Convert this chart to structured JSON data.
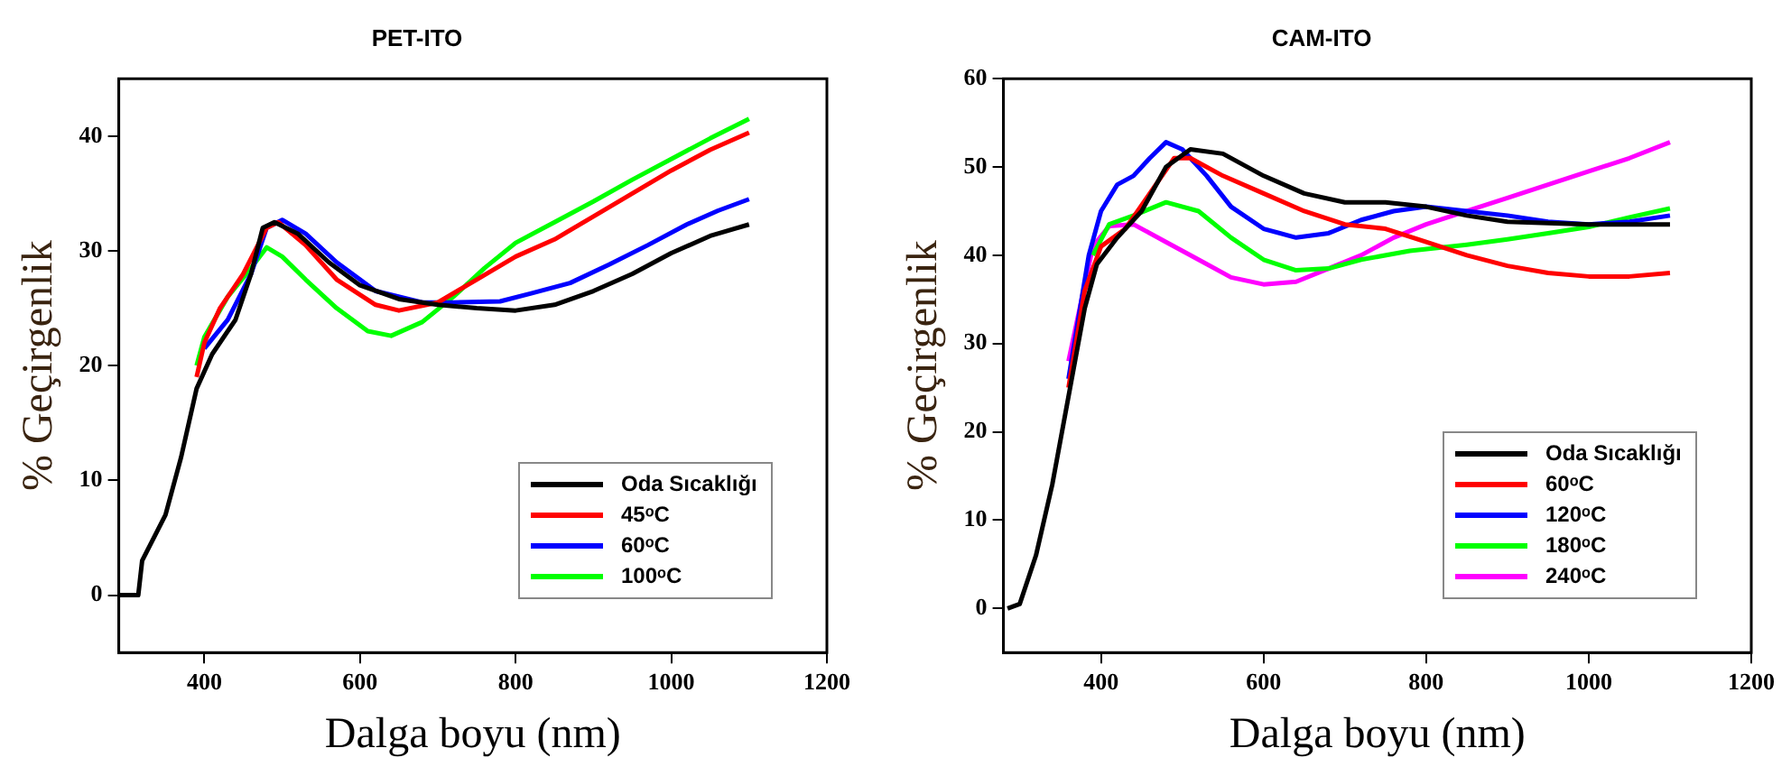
{
  "chart_data": [
    {
      "type": "line",
      "title": "PET-ITO",
      "xlabel": "Dalga boyu (nm)",
      "ylabel": "% Geçirgenlik",
      "xlim": [
        290,
        1200
      ],
      "ylim": [
        -5,
        45
      ],
      "xticks": [
        400,
        600,
        800,
        1000,
        1200
      ],
      "yticks": [
        0,
        10,
        20,
        30,
        40
      ],
      "legend": "bottom right",
      "series": [
        {
          "name": "Oda Sıcaklığı",
          "color": "#000000",
          "x": [
            290,
            315,
            320,
            350,
            370,
            390,
            410,
            440,
            460,
            475,
            490,
            520,
            560,
            600,
            650,
            700,
            750,
            800,
            850,
            900,
            950,
            1000,
            1050,
            1100
          ],
          "values": [
            0,
            0,
            3,
            7,
            12,
            18,
            21,
            24,
            28,
            32,
            32.5,
            31.5,
            29,
            27,
            25.8,
            25.3,
            25,
            24.8,
            25.3,
            26.5,
            28,
            29.8,
            31.3,
            32.3
          ]
        },
        {
          "name": "45ᵒC",
          "color": "#ff0000",
          "x": [
            390,
            400,
            420,
            450,
            480,
            495,
            530,
            570,
            620,
            650,
            700,
            750,
            800,
            850,
            900,
            950,
            1000,
            1050,
            1100
          ],
          "values": [
            19,
            22,
            25,
            28,
            32,
            32.5,
            30.5,
            27.5,
            25.3,
            24.8,
            25.5,
            27.5,
            29.5,
            31,
            33,
            35,
            37,
            38.8,
            40.3
          ]
        },
        {
          "name": "60ᵒC",
          "color": "#0000ff",
          "x": [
            400,
            430,
            460,
            480,
            500,
            530,
            570,
            620,
            680,
            720,
            780,
            820,
            870,
            920,
            970,
            1020,
            1060,
            1100
          ],
          "values": [
            21.5,
            24,
            28,
            32,
            32.7,
            31.5,
            29,
            26.5,
            25.5,
            25.5,
            25.6,
            26.3,
            27.2,
            28.8,
            30.5,
            32.3,
            33.5,
            34.5
          ]
        },
        {
          "name": "100ᵒC",
          "color": "#00ff00",
          "x": [
            390,
            400,
            430,
            460,
            480,
            500,
            530,
            570,
            610,
            640,
            680,
            720,
            760,
            800,
            850,
            900,
            950,
            1000,
            1050,
            1100
          ],
          "values": [
            20,
            22.5,
            26,
            28.5,
            30.3,
            29.5,
            27.5,
            25,
            23,
            22.6,
            23.8,
            26,
            28.5,
            30.7,
            32.5,
            34.3,
            36.2,
            38,
            39.8,
            41.5
          ]
        }
      ]
    },
    {
      "type": "line",
      "title": "CAM-ITO",
      "xlabel": "Dalga boyu (nm)",
      "ylabel": "% Geçirgenlik",
      "xlim": [
        280,
        1200
      ],
      "ylim": [
        -5,
        60
      ],
      "xticks": [
        400,
        600,
        800,
        1000,
        1200
      ],
      "yticks": [
        0,
        10,
        20,
        30,
        40,
        50,
        60
      ],
      "legend": "bottom right",
      "series": [
        {
          "name": "Oda Sıcaklığı",
          "color": "#000000",
          "x": [
            285,
            300,
            320,
            340,
            360,
            380,
            395,
            420,
            450,
            480,
            510,
            550,
            600,
            650,
            700,
            750,
            800,
            850,
            900,
            1000,
            1100
          ],
          "values": [
            0,
            0.5,
            6,
            14,
            24,
            34,
            39,
            42,
            45,
            50,
            52,
            51.5,
            49,
            47,
            46,
            46,
            45.5,
            44.5,
            43.8,
            43.5,
            43.5
          ]
        },
        {
          "name": "60ᵒC",
          "color": "#ff0000",
          "x": [
            360,
            380,
            400,
            430,
            460,
            490,
            510,
            550,
            600,
            650,
            700,
            750,
            800,
            850,
            900,
            950,
            1000,
            1050,
            1100
          ],
          "values": [
            25,
            36,
            41,
            43,
            47,
            51,
            51,
            49,
            47,
            45,
            43.5,
            43,
            41.5,
            40,
            38.8,
            38,
            37.6,
            37.6,
            38
          ]
        },
        {
          "name": "120ᵒC",
          "color": "#0000ff",
          "x": [
            360,
            385,
            400,
            420,
            440,
            460,
            480,
            500,
            530,
            560,
            600,
            640,
            680,
            720,
            760,
            800,
            850,
            900,
            950,
            1000,
            1050,
            1100
          ],
          "values": [
            26,
            40,
            45,
            48,
            49,
            51,
            52.8,
            52,
            49,
            45.5,
            43,
            42,
            42.5,
            44,
            45,
            45.5,
            45,
            44.5,
            43.8,
            43.5,
            43.8,
            44.5
          ]
        },
        {
          "name": "180ᵒC",
          "color": "#00ff00",
          "x": [
            390,
            410,
            440,
            480,
            520,
            560,
            600,
            640,
            680,
            720,
            780,
            850,
            900,
            950,
            1000,
            1050,
            1100
          ],
          "values": [
            40,
            43.5,
            44.5,
            46,
            45,
            42,
            39.5,
            38.3,
            38.5,
            39.5,
            40.5,
            41.2,
            41.8,
            42.5,
            43.2,
            44.3,
            45.3
          ]
        },
        {
          "name": "240ᵒC",
          "color": "#ff00ff",
          "x": [
            360,
            390,
            410,
            440,
            480,
            520,
            560,
            600,
            640,
            680,
            720,
            760,
            800,
            850,
            900,
            950,
            1000,
            1050,
            1100
          ],
          "values": [
            28,
            41,
            43.3,
            43.5,
            41.5,
            39.5,
            37.5,
            36.7,
            37,
            38.5,
            40,
            42,
            43.5,
            45,
            46.5,
            48,
            49.5,
            51,
            52.8
          ]
        }
      ]
    }
  ]
}
